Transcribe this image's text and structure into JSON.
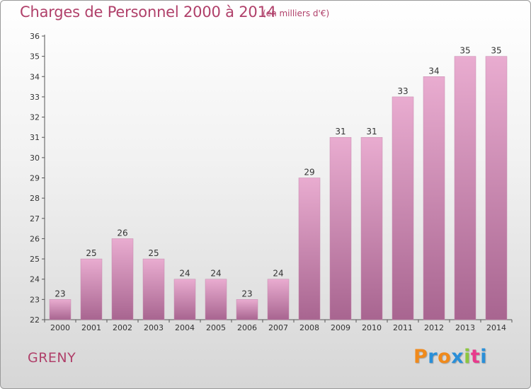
{
  "header": {
    "title": "Charges de Personnel 2000 à 2014",
    "subtitle": "(en milliers d'€)"
  },
  "footer": {
    "commune": "GRENY",
    "logo_letters": [
      {
        "char": "P",
        "color": "#f08a1c"
      },
      {
        "char": "r",
        "color": "#2a8fd8"
      },
      {
        "char": "o",
        "color": "#f08a1c"
      },
      {
        "char": "x",
        "color": "#2a8fd8"
      },
      {
        "char": "i",
        "color": "#8cc63f"
      },
      {
        "char": "t",
        "color": "#e83a8c"
      },
      {
        "char": "i",
        "color": "#2a8fd8"
      }
    ]
  },
  "colors": {
    "title": "#b0406a",
    "bar_top": "#e9acd0",
    "bar_bottom": "#a86590",
    "bar_edge": "#c68aae"
  },
  "chart_data": {
    "type": "bar",
    "title": "Charges de Personnel 2000 à 2014",
    "subtitle": "(en milliers d'€)",
    "categories": [
      "2000",
      "2001",
      "2002",
      "2003",
      "2004",
      "2005",
      "2006",
      "2007",
      "2008",
      "2009",
      "2010",
      "2011",
      "2012",
      "2013",
      "2014"
    ],
    "values": [
      23,
      25,
      26,
      25,
      24,
      24,
      23,
      24,
      29,
      31,
      31,
      33,
      34,
      35,
      35
    ],
    "ylim": [
      22,
      36
    ],
    "yticks": [
      22,
      23,
      24,
      25,
      26,
      27,
      28,
      29,
      30,
      31,
      32,
      33,
      34,
      35,
      36
    ],
    "grid": false,
    "data_labels": true
  }
}
